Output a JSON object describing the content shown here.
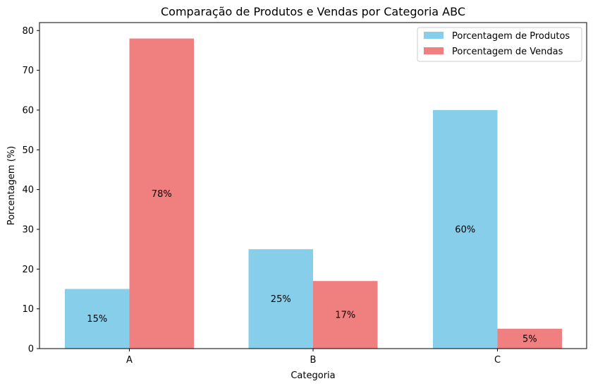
{
  "chart_data": {
    "type": "bar",
    "title": "Comparação de Produtos e Vendas por Categoria ABC",
    "xlabel": "Categoria",
    "ylabel": "Porcentagem (%)",
    "categories": [
      "A",
      "B",
      "C"
    ],
    "ylim": [
      0,
      82
    ],
    "yticks": [
      0,
      10,
      20,
      30,
      40,
      50,
      60,
      70,
      80
    ],
    "grid": false,
    "legend_position": "top-right",
    "series": [
      {
        "name": "Porcentagem de Produtos",
        "color": "#87ceeb",
        "values": [
          15,
          25,
          60
        ],
        "labels": [
          "15%",
          "25%",
          "60%"
        ]
      },
      {
        "name": "Porcentagem de Vendas",
        "color": "#f08080",
        "values": [
          78,
          17,
          5
        ],
        "labels": [
          "78%",
          "17%",
          "5%"
        ]
      }
    ]
  }
}
